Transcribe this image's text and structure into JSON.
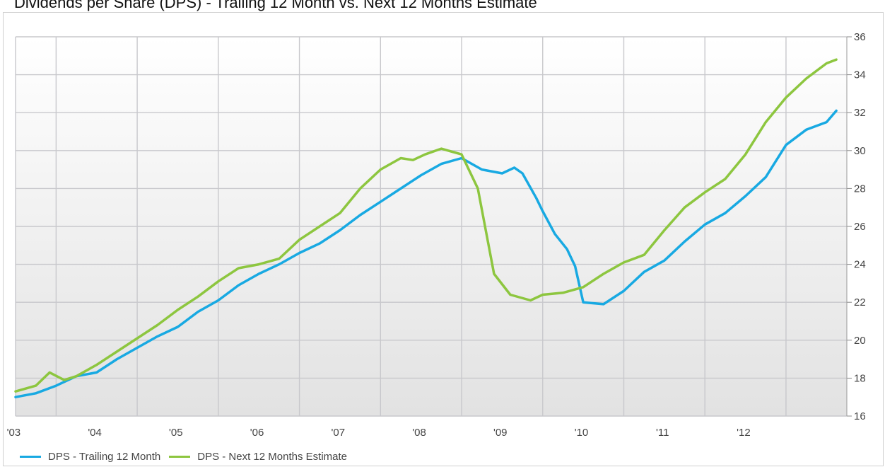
{
  "header": {
    "title": "Dividends per Share (DPS) - Trailing 12 Month vs. Next 12 Months Estimate"
  },
  "colors": {
    "trailing": "#18a9e2",
    "estimate": "#8dc63f",
    "grid": "#c8c8cc",
    "background_top": "#ffffff",
    "background_bottom": "#e2e2e2"
  },
  "chart_data": {
    "type": "line",
    "title": "",
    "xlabel": "",
    "ylabel": "",
    "x_axis": "year",
    "x_range": [
      2002.5,
      2012.75
    ],
    "x_ticks": [
      2003,
      2004,
      2005,
      2006,
      2007,
      2008,
      2009,
      2010,
      2011,
      2012
    ],
    "x_tick_labels": [
      "'03",
      "'04",
      "'05",
      "'06",
      "'07",
      "'08",
      "'09",
      "'10",
      "'11",
      "'12"
    ],
    "y_axis_position": "right",
    "ylim": [
      16,
      36
    ],
    "y_ticks": [
      16,
      18,
      20,
      22,
      24,
      26,
      28,
      30,
      32,
      34,
      36
    ],
    "grid": true,
    "legend_position": "bottom-left",
    "series": [
      {
        "name": "DPS - Trailing 12 Month",
        "points": [
          [
            2002.5,
            17.0
          ],
          [
            2002.75,
            17.2
          ],
          [
            2003.0,
            17.6
          ],
          [
            2003.25,
            18.1
          ],
          [
            2003.5,
            18.3
          ],
          [
            2003.75,
            19.0
          ],
          [
            2004.0,
            19.6
          ],
          [
            2004.25,
            20.2
          ],
          [
            2004.5,
            20.7
          ],
          [
            2004.75,
            21.5
          ],
          [
            2005.0,
            22.1
          ],
          [
            2005.25,
            22.9
          ],
          [
            2005.5,
            23.5
          ],
          [
            2005.75,
            24.0
          ],
          [
            2006.0,
            24.6
          ],
          [
            2006.25,
            25.1
          ],
          [
            2006.5,
            25.8
          ],
          [
            2006.75,
            26.6
          ],
          [
            2007.0,
            27.3
          ],
          [
            2007.25,
            28.0
          ],
          [
            2007.5,
            28.7
          ],
          [
            2007.75,
            29.3
          ],
          [
            2008.0,
            29.6
          ],
          [
            2008.25,
            29.0
          ],
          [
            2008.5,
            28.8
          ],
          [
            2008.65,
            29.1
          ],
          [
            2008.75,
            28.8
          ],
          [
            2008.92,
            27.5
          ],
          [
            2009.0,
            26.8
          ],
          [
            2009.15,
            25.6
          ],
          [
            2009.3,
            24.8
          ],
          [
            2009.4,
            23.9
          ],
          [
            2009.5,
            22.0
          ],
          [
            2009.75,
            21.9
          ],
          [
            2010.0,
            22.6
          ],
          [
            2010.25,
            23.6
          ],
          [
            2010.5,
            24.2
          ],
          [
            2010.75,
            25.2
          ],
          [
            2011.0,
            26.1
          ],
          [
            2011.25,
            26.7
          ],
          [
            2011.5,
            27.6
          ],
          [
            2011.75,
            28.6
          ],
          [
            2012.0,
            30.3
          ],
          [
            2012.25,
            31.1
          ],
          [
            2012.5,
            31.5
          ],
          [
            2012.62,
            32.1
          ]
        ]
      },
      {
        "name": "DPS - Next 12 Months Estimate",
        "points": [
          [
            2002.5,
            17.3
          ],
          [
            2002.75,
            17.6
          ],
          [
            2002.92,
            18.3
          ],
          [
            2003.1,
            17.9
          ],
          [
            2003.25,
            18.1
          ],
          [
            2003.5,
            18.7
          ],
          [
            2003.75,
            19.4
          ],
          [
            2004.0,
            20.1
          ],
          [
            2004.25,
            20.8
          ],
          [
            2004.5,
            21.6
          ],
          [
            2004.75,
            22.3
          ],
          [
            2005.0,
            23.1
          ],
          [
            2005.25,
            23.8
          ],
          [
            2005.5,
            24.0
          ],
          [
            2005.75,
            24.3
          ],
          [
            2006.0,
            25.3
          ],
          [
            2006.25,
            26.0
          ],
          [
            2006.5,
            26.7
          ],
          [
            2006.75,
            28.0
          ],
          [
            2007.0,
            29.0
          ],
          [
            2007.25,
            29.6
          ],
          [
            2007.4,
            29.5
          ],
          [
            2007.55,
            29.8
          ],
          [
            2007.75,
            30.1
          ],
          [
            2008.0,
            29.8
          ],
          [
            2008.2,
            28.0
          ],
          [
            2008.4,
            23.5
          ],
          [
            2008.6,
            22.4
          ],
          [
            2008.85,
            22.1
          ],
          [
            2009.0,
            22.4
          ],
          [
            2009.25,
            22.5
          ],
          [
            2009.5,
            22.8
          ],
          [
            2009.75,
            23.5
          ],
          [
            2010.0,
            24.1
          ],
          [
            2010.25,
            24.5
          ],
          [
            2010.5,
            25.8
          ],
          [
            2010.75,
            27.0
          ],
          [
            2011.0,
            27.8
          ],
          [
            2011.25,
            28.5
          ],
          [
            2011.5,
            29.8
          ],
          [
            2011.75,
            31.5
          ],
          [
            2012.0,
            32.8
          ],
          [
            2012.25,
            33.8
          ],
          [
            2012.5,
            34.6
          ],
          [
            2012.62,
            34.8
          ]
        ]
      }
    ]
  }
}
